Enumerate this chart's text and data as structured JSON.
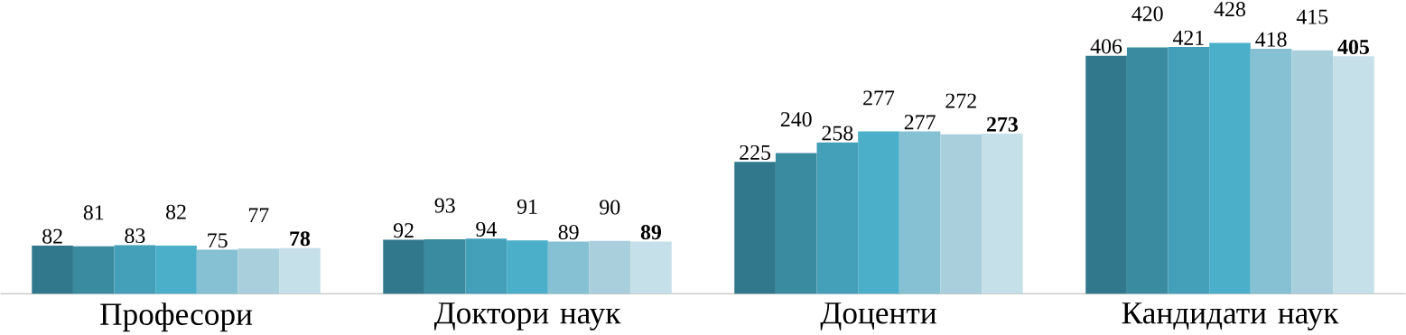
{
  "chart_data": {
    "type": "bar",
    "categories": [
      "Професори",
      "Доктори наук",
      "Доценти",
      "Кандидати наук"
    ],
    "series": [
      {
        "color": "#31788c",
        "values": [
          82,
          92,
          225,
          406
        ]
      },
      {
        "color": "#3a8aa0",
        "values": [
          81,
          93,
          240,
          420
        ]
      },
      {
        "color": "#449fb8",
        "values": [
          83,
          94,
          258,
          421
        ]
      },
      {
        "color": "#4bafc9",
        "values": [
          82,
          91,
          277,
          428
        ]
      },
      {
        "color": "#86c0d3",
        "values": [
          75,
          89,
          277,
          418
        ]
      },
      {
        "color": "#a9cfdd",
        "values": [
          77,
          90,
          272,
          415
        ]
      },
      {
        "color": "#c5e0e8",
        "values": [
          78,
          89,
          273,
          405
        ]
      }
    ],
    "data_labels": true
  }
}
